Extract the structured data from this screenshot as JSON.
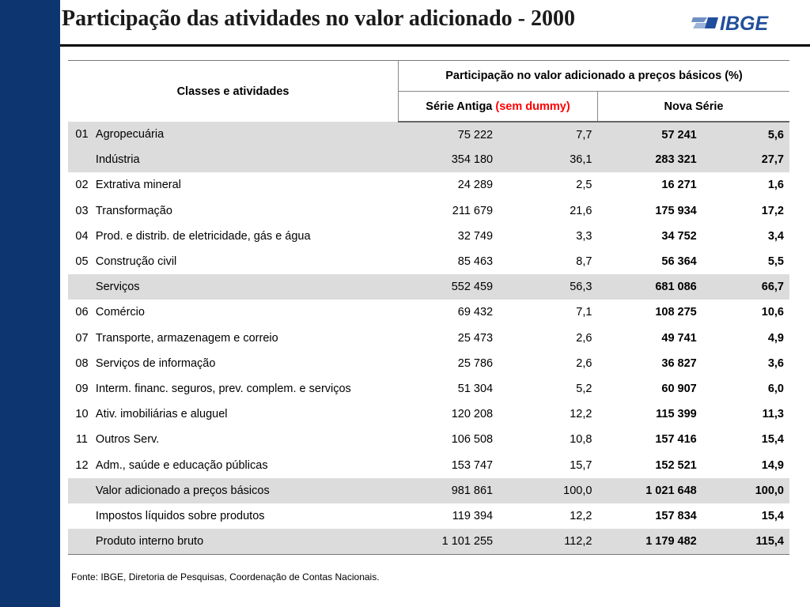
{
  "title": "Participação das atividades no valor adicionado - 2000",
  "logo": {
    "text": "IBGE",
    "color": "#1f4e9c"
  },
  "colors": {
    "sidebar": "#0d3570",
    "shaded_row": "#dcdcdc",
    "highlight_text": "#ff0000"
  },
  "table": {
    "header_classes": "Classes e atividades",
    "header_group": "Participação no valor adicionado a preços básicos (%)",
    "header_antiga": "Série Antiga",
    "header_antiga_note": "(sem dummy)",
    "header_nova": "Nova Série",
    "rows": [
      {
        "code": "01",
        "name": "Agropecuária",
        "antiga_valor": "75 222",
        "antiga_pct": "7,7",
        "nova_valor": "57 241",
        "nova_pct": "5,6"
      },
      {
        "code": "",
        "name": "Indústria",
        "antiga_valor": "354 180",
        "antiga_pct": "36,1",
        "nova_valor": "283 321",
        "nova_pct": "27,7"
      },
      {
        "code": "02",
        "name": "Extrativa mineral",
        "antiga_valor": "24 289",
        "antiga_pct": "2,5",
        "nova_valor": "16 271",
        "nova_pct": "1,6"
      },
      {
        "code": "03",
        "name": "Transformação",
        "antiga_valor": "211 679",
        "antiga_pct": "21,6",
        "nova_valor": "175 934",
        "nova_pct": "17,2"
      },
      {
        "code": "04",
        "name": "Prod. e  distrib. de eletricidade, gás e água",
        "antiga_valor": "32 749",
        "antiga_pct": "3,3",
        "nova_valor": "34 752",
        "nova_pct": "3,4"
      },
      {
        "code": "05",
        "name": "Construção civil",
        "antiga_valor": "85 463",
        "antiga_pct": "8,7",
        "nova_valor": "56 364",
        "nova_pct": "5,5"
      },
      {
        "code": "",
        "name": "Serviços",
        "antiga_valor": "552 459",
        "antiga_pct": "56,3",
        "nova_valor": "681 086",
        "nova_pct": "66,7"
      },
      {
        "code": "06",
        "name": "Comércio",
        "antiga_valor": "69 432",
        "antiga_pct": "7,1",
        "nova_valor": "108 275",
        "nova_pct": "10,6"
      },
      {
        "code": "07",
        "name": "Transporte, armazenagem e correio",
        "antiga_valor": "25 473",
        "antiga_pct": "2,6",
        "nova_valor": "49 741",
        "nova_pct": "4,9"
      },
      {
        "code": "08",
        "name": "Serviços de informação",
        "antiga_valor": "25 786",
        "antiga_pct": "2,6",
        "nova_valor": "36 827",
        "nova_pct": "3,6"
      },
      {
        "code": "09",
        "name": "Interm. financ. seguros, prev. complem. e serviços",
        "antiga_valor": "51 304",
        "antiga_pct": "5,2",
        "nova_valor": "60 907",
        "nova_pct": "6,0"
      },
      {
        "code": "10",
        "name": "Ativ. imobiliárias e aluguel",
        "antiga_valor": "120 208",
        "antiga_pct": "12,2",
        "nova_valor": "115 399",
        "nova_pct": "11,3"
      },
      {
        "code": "11",
        "name": "Outros Serv.",
        "antiga_valor": "106 508",
        "antiga_pct": "10,8",
        "nova_valor": "157 416",
        "nova_pct": "15,4"
      },
      {
        "code": "12",
        "name": "Adm., saúde e educação públicas",
        "antiga_valor": "153 747",
        "antiga_pct": "15,7",
        "nova_valor": "152 521",
        "nova_pct": "14,9"
      },
      {
        "code": "",
        "name": "Valor adicionado a preços básicos",
        "antiga_valor": "981 861",
        "antiga_pct": "100,0",
        "nova_valor": "1 021 648",
        "nova_pct": "100,0"
      },
      {
        "code": "",
        "name": "Impostos líquidos sobre produtos",
        "antiga_valor": "119 394",
        "antiga_pct": "12,2",
        "nova_valor": "157 834",
        "nova_pct": "15,4"
      },
      {
        "code": "",
        "name": "Produto interno bruto",
        "antiga_valor": "1 101 255",
        "antiga_pct": "112,2",
        "nova_valor": "1 179 482",
        "nova_pct": "115,4"
      }
    ],
    "shaded_rows": [
      0,
      1,
      6,
      14,
      16
    ]
  },
  "source": "Fonte: IBGE, Diretoria de Pesquisas, Coordenação de Contas Nacionais."
}
